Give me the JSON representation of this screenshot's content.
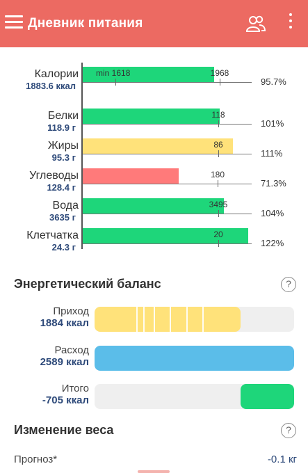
{
  "appbar": {
    "title": "Дневник питания",
    "menu_icon": "menu-icon",
    "people_icon": "people-icon",
    "more_icon": "more-vert-icon",
    "background": "#ec6a62"
  },
  "nutrients": {
    "rows": [
      {
        "name": "Калории",
        "amount": "1883.6 ккал",
        "min_label": "min 1618",
        "target": "1968",
        "percent": "95.7%",
        "fill": 0.957,
        "color": "#1ed67a"
      },
      {
        "name": "Белки",
        "amount": "118.9 г",
        "min_label": "",
        "target": "118",
        "percent": "101%",
        "fill": 1.01,
        "color": "#1ed67a"
      },
      {
        "name": "Жиры",
        "amount": "95.3 г",
        "min_label": "",
        "target": "86",
        "percent": "111%",
        "fill": 1.11,
        "color": "#ffe27a"
      },
      {
        "name": "Углеводы",
        "amount": "128.4 г",
        "min_label": "",
        "target": "180",
        "percent": "71.3%",
        "fill": 0.713,
        "color": "#ff7a7a"
      },
      {
        "name": "Вода",
        "amount": "3635 г",
        "min_label": "",
        "target": "3495",
        "percent": "104%",
        "fill": 1.04,
        "color": "#1ed67a"
      },
      {
        "name": "Клетчатка",
        "amount": "24.3 г",
        "min_label": "",
        "target": "20",
        "percent": "122%",
        "fill": 1.22,
        "color": "#1ed67a"
      }
    ]
  },
  "energy": {
    "title": "Энергетический баланс",
    "help": "?",
    "rows": [
      {
        "label": "Приход",
        "value": "1884 ккал",
        "color": "#ffe27a"
      },
      {
        "label": "Расход",
        "value": "2589 ккал",
        "color": "#5bbde9"
      },
      {
        "label": "Итого",
        "value": "-705 ккал",
        "color": "#1ed67a"
      }
    ]
  },
  "weight": {
    "title": "Изменение веса",
    "help": "?",
    "forecast_label": "Прогноз*",
    "forecast_value": "-0.1 кг"
  }
}
